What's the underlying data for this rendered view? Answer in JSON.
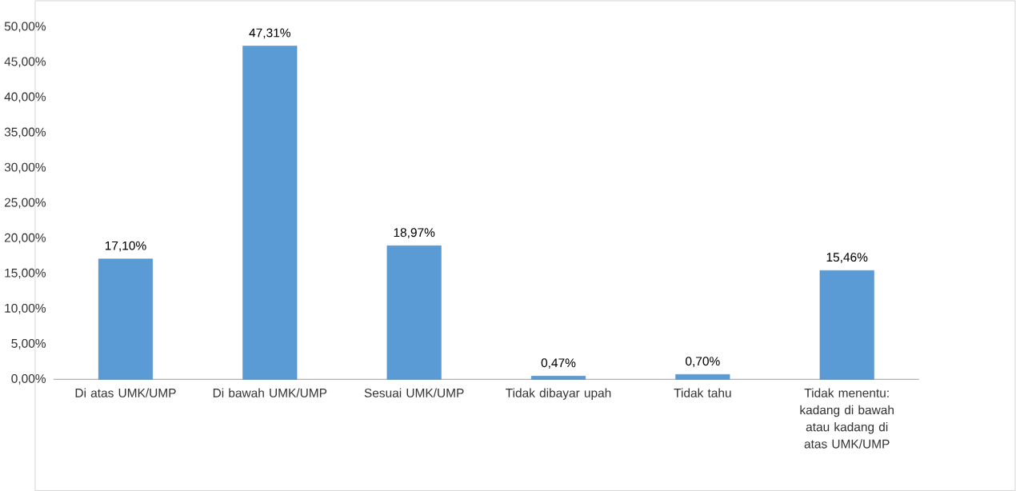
{
  "chart_data": {
    "type": "bar",
    "categories": [
      "Di atas UMK/UMP",
      "Di bawah UMK/UMP",
      "Sesuai UMK/UMP",
      "Tidak dibayar upah",
      "Tidak tahu",
      "Tidak menentu: kadang di bawah atau kadang di atas UMK/UMP"
    ],
    "values": [
      17.1,
      47.31,
      18.97,
      0.47,
      0.7,
      15.46
    ],
    "value_labels": [
      "17,10%",
      "47,31%",
      "18,97%",
      "0,47%",
      "0,70%",
      "15,46%"
    ],
    "color": "#5b9bd5",
    "ylim": [
      0,
      50
    ],
    "yticks": [
      {
        "value": 0,
        "label": "0,00%"
      },
      {
        "value": 5,
        "label": "5,00%"
      },
      {
        "value": 10,
        "label": "10,00%"
      },
      {
        "value": 15,
        "label": "15,00%"
      },
      {
        "value": 20,
        "label": "20,00%"
      },
      {
        "value": 25,
        "label": "25,00%"
      },
      {
        "value": 30,
        "label": "30,00%"
      },
      {
        "value": 35,
        "label": "35,00%"
      },
      {
        "value": 40,
        "label": "40,00%"
      },
      {
        "value": 45,
        "label": "45,00%"
      },
      {
        "value": 50,
        "label": "50,00%"
      }
    ]
  }
}
